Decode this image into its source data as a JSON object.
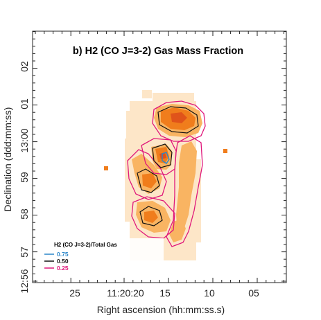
{
  "chart_data": {
    "type": "heatmap",
    "title": "b) H2 (CO J=3-2) Gas Mass Fraction",
    "xlabel": "Right ascension (hh:mm:ss.s)",
    "ylabel": "Declination (ddd:mm:ss)",
    "x_ticks": [
      "25",
      "11:20:20",
      "15",
      "10",
      "05"
    ],
    "y_ticks": [
      "12:56",
      "57",
      "58",
      "59",
      "13:00",
      "01",
      "02"
    ],
    "colors": {
      "fill_low": "#fde6c8",
      "fill_mid": "#f9b462",
      "fill_high": "#f07d1c",
      "fill_peak": "#e0531a",
      "contour_075": "#2b86c9",
      "contour_050": "#111111",
      "contour_025": "#e0177a"
    },
    "legend": {
      "title": "H2 (CO J=3-2)/Total Gas",
      "placement": "bottom-left",
      "entries": [
        {
          "label": "0.75",
          "color": "#2b86c9"
        },
        {
          "label": "0.50",
          "color": "#111111"
        },
        {
          "label": "0.25",
          "color": "#e0177a"
        }
      ]
    },
    "contour_levels": [
      0.25,
      0.5,
      0.75
    ],
    "grid": false
  }
}
